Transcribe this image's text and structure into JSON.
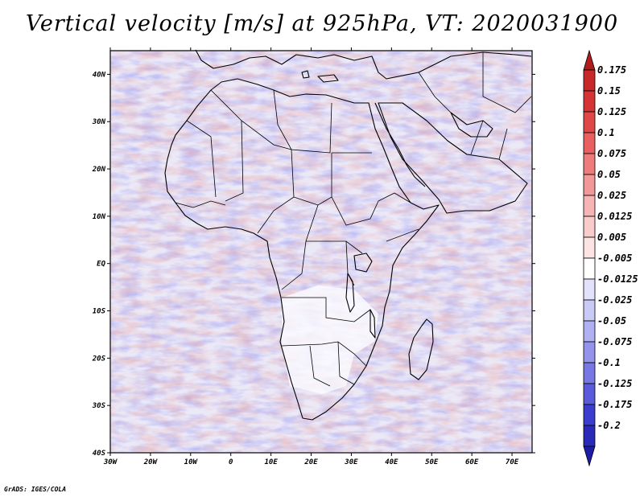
{
  "title": "Vertical velocity [m/s] at 925hPa, VT: 2020031900",
  "footer": "GrADS: IGES/COLA",
  "map": {
    "lon_range": [
      -30,
      75
    ],
    "lat_range": [
      -40,
      45
    ],
    "lon_ticks": [
      {
        "value": -30,
        "label": "30W"
      },
      {
        "value": -20,
        "label": "20W"
      },
      {
        "value": -10,
        "label": "10W"
      },
      {
        "value": 0,
        "label": "0"
      },
      {
        "value": 10,
        "label": "10E"
      },
      {
        "value": 20,
        "label": "20E"
      },
      {
        "value": 30,
        "label": "30E"
      },
      {
        "value": 40,
        "label": "40E"
      },
      {
        "value": 50,
        "label": "50E"
      },
      {
        "value": 60,
        "label": "60E"
      },
      {
        "value": 70,
        "label": "70E"
      }
    ],
    "lat_ticks": [
      {
        "value": 40,
        "label": "40N"
      },
      {
        "value": 30,
        "label": "30N"
      },
      {
        "value": 20,
        "label": "20N"
      },
      {
        "value": 10,
        "label": "10N"
      },
      {
        "value": 0,
        "label": "EQ"
      },
      {
        "value": -10,
        "label": "10S"
      },
      {
        "value": -20,
        "label": "20S"
      },
      {
        "value": -30,
        "label": "30S"
      },
      {
        "value": -40,
        "label": "40S"
      }
    ]
  },
  "colorbar": {
    "levels": [
      {
        "label": "0.175",
        "color": "#c82828"
      },
      {
        "label": "0.15",
        "color": "#d63434"
      },
      {
        "label": "0.125",
        "color": "#e04848"
      },
      {
        "label": "0.1",
        "color": "#e86060"
      },
      {
        "label": "0.075",
        "color": "#ee7c7c"
      },
      {
        "label": "0.05",
        "color": "#f29898"
      },
      {
        "label": "0.025",
        "color": "#f6b4b4"
      },
      {
        "label": "0.0125",
        "color": "#f9cccc"
      },
      {
        "label": "0.005",
        "color": "#fce4e4"
      },
      {
        "label": "-0.005",
        "color": "#ffffff"
      },
      {
        "label": "-0.0125",
        "color": "#e2e2fb"
      },
      {
        "label": "-0.025",
        "color": "#cacaf7"
      },
      {
        "label": "-0.05",
        "color": "#b0b0f2"
      },
      {
        "label": "-0.075",
        "color": "#9494ec"
      },
      {
        "label": "-0.1",
        "color": "#7878e4"
      },
      {
        "label": "-0.125",
        "color": "#5a5adb"
      },
      {
        "label": "-0.175",
        "color": "#3c3cce"
      },
      {
        "label": "-0.2",
        "color": "#2a2ab8"
      }
    ],
    "top_cap_color": "#b01c1c",
    "bottom_cap_color": "#1c1ca6"
  }
}
